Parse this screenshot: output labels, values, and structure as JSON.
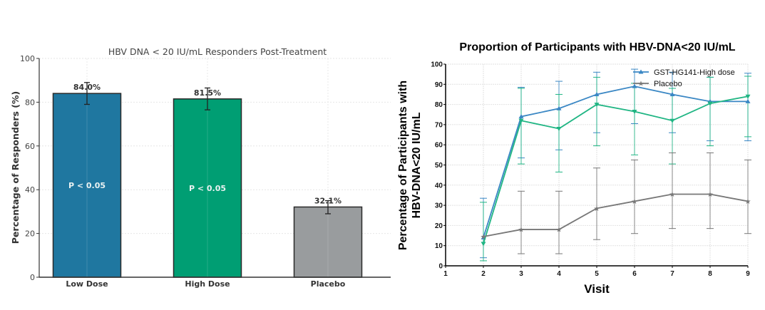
{
  "chart_data": [
    {
      "type": "bar",
      "title": "HBV DNA < 20 IU/mL Responders Post-Treatment",
      "xlabel": "",
      "ylabel": "Percentage of Responders (%)",
      "ylim": [
        0,
        100
      ],
      "yticks": [
        "0",
        "20",
        "40",
        "60",
        "80",
        "100"
      ],
      "grid": true,
      "categories": [
        "Low Dose",
        "High Dose",
        "Placebo"
      ],
      "values": [
        84.0,
        81.5,
        32.1
      ],
      "error_low": [
        79,
        76.5,
        29
      ],
      "error_high": [
        89,
        86.5,
        35
      ],
      "value_labels": [
        "84.0%",
        "81.5%",
        "32.1%"
      ],
      "annotations": [
        "P < 0.05",
        "P < 0.05",
        ""
      ],
      "colors": [
        "#1f77a0",
        "#009e73",
        "#999c9e"
      ]
    },
    {
      "type": "line",
      "title": "Proportion of Participants with HBV-DNA<20 IU/mL",
      "xlabel": "Visit",
      "ylabel": [
        "Percentage of Participants with",
        "HBV-DNA<20 IU/mL"
      ],
      "xlim": [
        1,
        9
      ],
      "ylim": [
        0,
        100
      ],
      "xticks": [
        "1",
        "2",
        "3",
        "4",
        "5",
        "6",
        "7",
        "8",
        "9"
      ],
      "yticks": [
        "0",
        "10",
        "20",
        "30",
        "40",
        "50",
        "60",
        "70",
        "80",
        "90",
        "100"
      ],
      "grid": true,
      "legend_placement": "top-right",
      "x": [
        2,
        3,
        4,
        5,
        6,
        7,
        8,
        9
      ],
      "series": [
        {
          "name": "GST-HG141-High dose",
          "color": "#3a87c4",
          "marker": "triangle-up",
          "values": [
            14,
            74,
            78,
            85,
            89,
            85,
            81.5,
            81.5
          ],
          "error_low": [
            4,
            53.5,
            57.5,
            66,
            70.5,
            66,
            62,
            62
          ],
          "error_high": [
            33.5,
            88.5,
            91.5,
            96,
            97.5,
            96,
            93.5,
            95.5
          ]
        },
        {
          "color": "#1fb583",
          "marker": "triangle-down",
          "values": [
            11,
            72,
            68,
            80,
            76.5,
            72,
            80.5,
            84
          ],
          "error_low": [
            2.5,
            50.5,
            46.5,
            59.5,
            55,
            50.5,
            59.5,
            64
          ],
          "error_high": [
            31.5,
            88,
            85,
            93.5,
            90.5,
            88,
            93.5,
            94
          ]
        },
        {
          "name": "Placebo",
          "color": "#777777",
          "marker": "star",
          "values": [
            14.5,
            18,
            18,
            28.5,
            32,
            35.5,
            35.5,
            32
          ],
          "error_low": [
            14.5,
            6,
            6,
            13,
            16,
            18.5,
            18.5,
            16
          ],
          "error_high": [
            14.5,
            37,
            37,
            48.5,
            52.5,
            56,
            56,
            52.5
          ]
        }
      ]
    }
  ]
}
